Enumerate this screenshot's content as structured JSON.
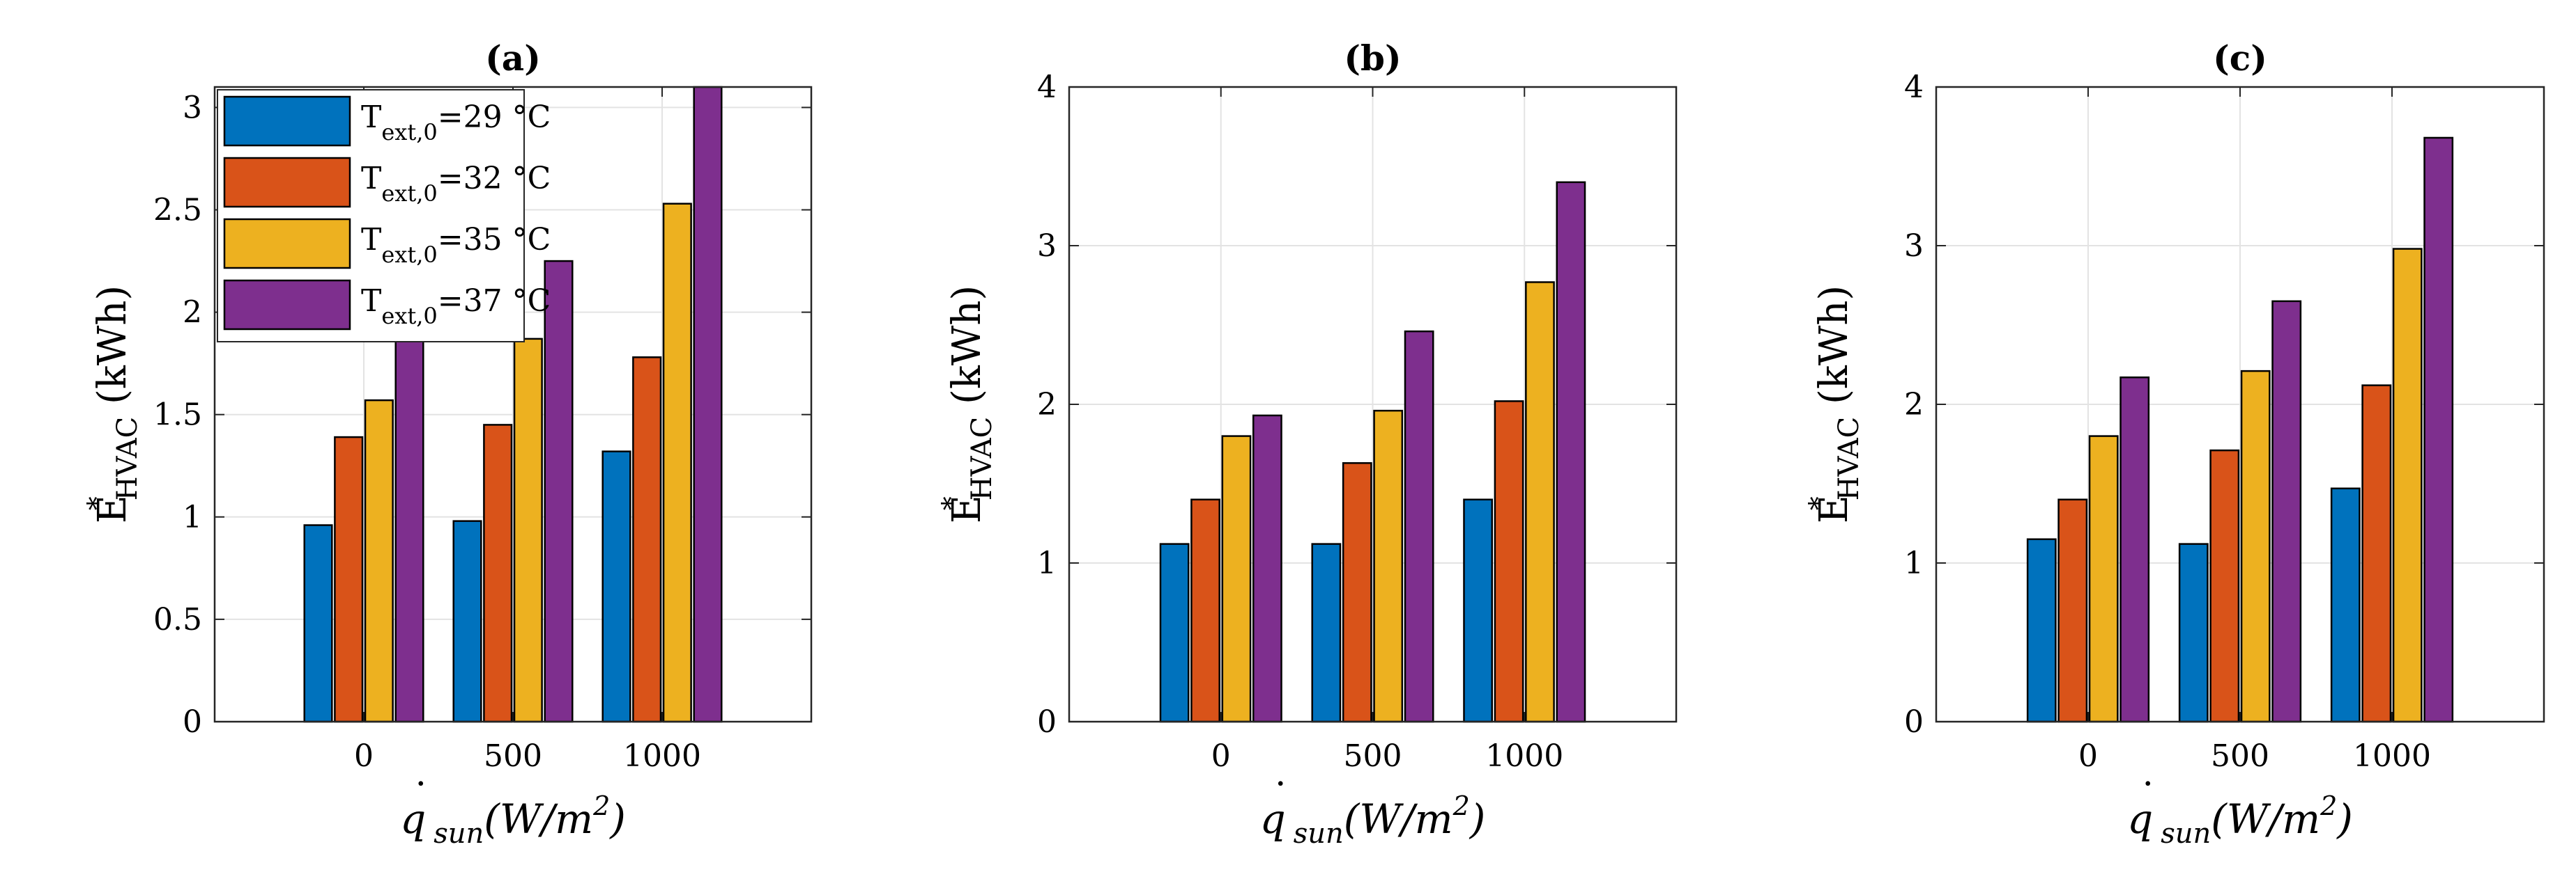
{
  "colors": {
    "series": [
      "#0072BD",
      "#D95319",
      "#EDB120",
      "#7E2F8E"
    ],
    "grid": "#e3e3e3",
    "axis": "#262626",
    "bar_edge": "#000000"
  },
  "legend": {
    "placement": "top-left inside panel (a)",
    "entries": [
      {
        "base": "T",
        "sub": "ext,0",
        "rest": "=29 °C"
      },
      {
        "base": "T",
        "sub": "ext,0",
        "rest": "=32 °C"
      },
      {
        "base": "T",
        "sub": "ext,0",
        "rest": "=35 °C"
      },
      {
        "base": "T",
        "sub": "ext,0",
        "rest": "=37 °C"
      }
    ]
  },
  "axis_text": {
    "ylabel_main": "E",
    "ylabel_sup": "*",
    "ylabel_sub": "HVAC",
    "ylabel_unit": " (kWh)",
    "xlabel_q": "q",
    "xlabel_dot": "˙",
    "xlabel_sub": "sun",
    "xlabel_rest": "(W/m",
    "xlabel_sup": "2",
    "xlabel_close": ")"
  },
  "chart_data": [
    {
      "type": "bar",
      "title": "(a)",
      "categories": [
        "0",
        "500",
        "1000"
      ],
      "ylim": [
        0,
        3.1
      ],
      "yticks": [
        "0",
        "0.5",
        "1",
        "1.5",
        "2",
        "2.5",
        "3"
      ],
      "grid": true,
      "series": [
        {
          "name": "Text,0=29 °C",
          "values": [
            0.96,
            0.98,
            1.32
          ]
        },
        {
          "name": "Text,0=32 °C",
          "values": [
            1.39,
            1.45,
            1.78
          ]
        },
        {
          "name": "Text,0=35 °C",
          "values": [
            1.57,
            1.87,
            2.53
          ]
        },
        {
          "name": "Text,0=37 °C",
          "values": [
            1.93,
            2.25,
            3.1
          ]
        }
      ]
    },
    {
      "type": "bar",
      "title": "(b)",
      "categories": [
        "0",
        "500",
        "1000"
      ],
      "ylim": [
        0,
        4
      ],
      "yticks": [
        "0",
        "1",
        "2",
        "3",
        "4"
      ],
      "grid": true,
      "series": [
        {
          "name": "Text,0=29 °C",
          "values": [
            1.12,
            1.12,
            1.4
          ]
        },
        {
          "name": "Text,0=32 °C",
          "values": [
            1.4,
            1.63,
            2.02
          ]
        },
        {
          "name": "Text,0=35 °C",
          "values": [
            1.8,
            1.96,
            2.77
          ]
        },
        {
          "name": "Text,0=37 °C",
          "values": [
            1.93,
            2.46,
            3.4
          ]
        }
      ]
    },
    {
      "type": "bar",
      "title": "(c)",
      "categories": [
        "0",
        "500",
        "1000"
      ],
      "ylim": [
        0,
        4
      ],
      "yticks": [
        "0",
        "1",
        "2",
        "3",
        "4"
      ],
      "grid": true,
      "series": [
        {
          "name": "Text,0=29 °C",
          "values": [
            1.15,
            1.12,
            1.47
          ]
        },
        {
          "name": "Text,0=32 °C",
          "values": [
            1.4,
            1.71,
            2.12
          ]
        },
        {
          "name": "Text,0=35 °C",
          "values": [
            1.8,
            2.21,
            2.98
          ]
        },
        {
          "name": "Text,0=37 °C",
          "values": [
            2.17,
            2.65,
            3.68
          ]
        }
      ]
    }
  ]
}
